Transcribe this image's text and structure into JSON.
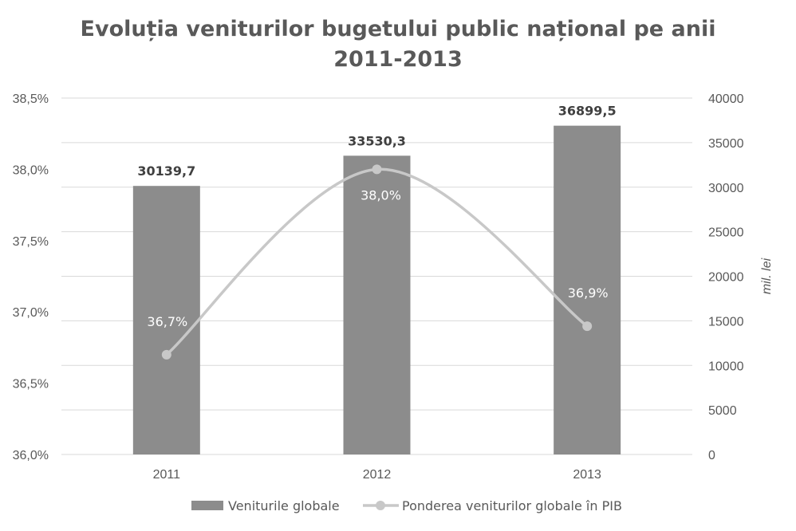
{
  "chart_data": {
    "type": "bar",
    "title_line1": "Evoluția veniturilor bugetului public național pe anii",
    "title_line2": "2011-2013",
    "categories": [
      "2011",
      "2012",
      "2013"
    ],
    "series": [
      {
        "name": "Veniturile globale",
        "type": "bar",
        "axis": "right",
        "values": [
          30139.7,
          33530.3,
          36899.5
        ],
        "labels": [
          "30139,7",
          "33530,3",
          "36899,5"
        ],
        "color": "#8c8c8c"
      },
      {
        "name": "Ponderea veniturilor globale în PIB",
        "type": "line",
        "axis": "left",
        "values": [
          36.7,
          38.0,
          36.9
        ],
        "labels": [
          "36,7%",
          "38,0%",
          "36,9%"
        ],
        "color": "#c8c8c8"
      }
    ],
    "left_axis": {
      "range": [
        36.0,
        38.5
      ],
      "ticks": [
        36.0,
        36.5,
        37.0,
        37.5,
        38.0,
        38.5
      ],
      "tick_labels": [
        "36,0%",
        "36,5%",
        "37,0%",
        "37,5%",
        "38,0%",
        "38,5%"
      ]
    },
    "right_axis": {
      "label": "mil. lei",
      "range": [
        0,
        40000
      ],
      "ticks": [
        0,
        5000,
        10000,
        15000,
        20000,
        25000,
        30000,
        35000,
        40000
      ],
      "tick_labels": [
        "0",
        "5000",
        "10000",
        "15000",
        "20000",
        "25000",
        "30000",
        "35000",
        "40000"
      ]
    },
    "grid": true,
    "legend_position": "bottom",
    "colors": {
      "gridline": "#d9d9d9",
      "text": "#595959"
    }
  }
}
